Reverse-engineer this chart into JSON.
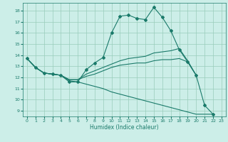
{
  "title": "",
  "xlabel": "Humidex (Indice chaleur)",
  "bg_color": "#cceee8",
  "grid_color": "#99ccbb",
  "line_color": "#1a7a6a",
  "xlim": [
    -0.5,
    23.5
  ],
  "ylim": [
    8.5,
    18.7
  ],
  "yticks": [
    9,
    10,
    11,
    12,
    13,
    14,
    15,
    16,
    17,
    18
  ],
  "xticks": [
    0,
    1,
    2,
    3,
    4,
    5,
    6,
    7,
    8,
    9,
    10,
    11,
    12,
    13,
    14,
    15,
    16,
    17,
    18,
    19,
    20,
    21,
    22,
    23
  ],
  "lines": [
    {
      "x": [
        0,
        1,
        2,
        3,
        4,
        5,
        6,
        7,
        8,
        9,
        10,
        11,
        12,
        13,
        14,
        15,
        16,
        17,
        18,
        19,
        20,
        21,
        22
      ],
      "y": [
        13.7,
        12.9,
        12.4,
        12.3,
        12.2,
        11.6,
        11.6,
        12.7,
        13.3,
        13.8,
        16.0,
        17.5,
        17.6,
        17.3,
        17.2,
        18.3,
        17.4,
        16.2,
        14.5,
        13.4,
        12.2,
        9.5,
        8.7
      ],
      "marker": true
    },
    {
      "x": [
        0,
        1,
        2,
        3,
        4,
        5,
        6,
        7,
        8,
        9,
        10,
        11,
        12,
        13,
        14,
        15,
        16,
        17,
        18,
        19,
        20
      ],
      "y": [
        13.7,
        12.9,
        12.4,
        12.3,
        12.2,
        11.8,
        11.8,
        12.3,
        12.6,
        12.9,
        13.2,
        13.5,
        13.7,
        13.8,
        13.9,
        14.2,
        14.3,
        14.4,
        14.6,
        13.5,
        12.2
      ],
      "marker": false
    },
    {
      "x": [
        0,
        1,
        2,
        3,
        4,
        5,
        6,
        7,
        8,
        9,
        10,
        11,
        12,
        13,
        14,
        15,
        16,
        17,
        18,
        19,
        20
      ],
      "y": [
        13.7,
        12.9,
        12.4,
        12.3,
        12.2,
        11.8,
        11.8,
        12.1,
        12.3,
        12.6,
        12.9,
        13.1,
        13.2,
        13.3,
        13.3,
        13.5,
        13.6,
        13.6,
        13.7,
        13.4,
        12.2
      ],
      "marker": false
    },
    {
      "x": [
        0,
        1,
        2,
        3,
        4,
        5,
        6,
        7,
        8,
        9,
        10,
        11,
        12,
        13,
        14,
        15,
        16,
        17,
        18,
        19,
        20,
        21,
        22
      ],
      "y": [
        13.7,
        12.9,
        12.4,
        12.3,
        12.2,
        11.7,
        11.6,
        11.4,
        11.2,
        11.0,
        10.7,
        10.5,
        10.3,
        10.1,
        9.9,
        9.7,
        9.5,
        9.3,
        9.1,
        8.9,
        8.7,
        8.7,
        8.7
      ],
      "marker": false
    }
  ]
}
